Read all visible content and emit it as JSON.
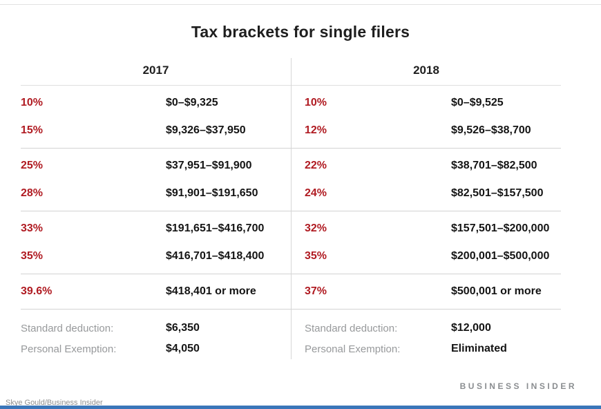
{
  "page": {
    "title": "Tax brackets for single filers",
    "brand": "BUSINESS INSIDER",
    "credit": "Skye Gould/Business Insider"
  },
  "colors": {
    "rate_red": "#b01b22",
    "label_gray": "#97999b",
    "divider_gray": "#d2d2d2",
    "bottom_bar_blue": "#3a76b9"
  },
  "table": {
    "columns": [
      {
        "year": "2017",
        "rows": [
          {
            "rate": "10%",
            "range": "$0–$9,325"
          },
          {
            "rate": "15%",
            "range": "$9,326–$37,950"
          },
          {
            "rate": "25%",
            "range": "$37,951–$91,900"
          },
          {
            "rate": "28%",
            "range": "$91,901–$191,650"
          },
          {
            "rate": "33%",
            "range": "$191,651–$416,700"
          },
          {
            "rate": "35%",
            "range": "$416,701–$418,400"
          },
          {
            "rate": "39.6%",
            "range": "$418,401 or more"
          }
        ],
        "footer": [
          {
            "label": "Standard deduction:",
            "value": "$6,350"
          },
          {
            "label": "Personal Exemption:",
            "value": "$4,050"
          }
        ]
      },
      {
        "year": "2018",
        "rows": [
          {
            "rate": "10%",
            "range": "$0–$9,525"
          },
          {
            "rate": "12%",
            "range": "$9,526–$38,700"
          },
          {
            "rate": "22%",
            "range": "$38,701–$82,500"
          },
          {
            "rate": "24%",
            "range": "$82,501–$157,500"
          },
          {
            "rate": "32%",
            "range": "$157,501–$200,000"
          },
          {
            "rate": "35%",
            "range": "$200,001–$500,000"
          },
          {
            "rate": "37%",
            "range": "$500,001 or more"
          }
        ],
        "footer": [
          {
            "label": "Standard deduction:",
            "value": "$12,000"
          },
          {
            "label": "Personal Exemption:",
            "value": "Eliminated"
          }
        ]
      }
    ]
  },
  "chart_data": {
    "type": "table",
    "title": "Tax brackets for single filers",
    "columns": [
      "2017 rate",
      "2017 income range",
      "2018 rate",
      "2018 income range"
    ],
    "rows": [
      [
        "10%",
        "$0–$9,325",
        "10%",
        "$0–$9,525"
      ],
      [
        "15%",
        "$9,326–$37,950",
        "12%",
        "$9,526–$38,700"
      ],
      [
        "25%",
        "$37,951–$91,900",
        "22%",
        "$38,701–$82,500"
      ],
      [
        "28%",
        "$91,901–$191,650",
        "24%",
        "$82,501–$157,500"
      ],
      [
        "33%",
        "$191,651–$416,700",
        "32%",
        "$157,501–$200,000"
      ],
      [
        "35%",
        "$416,701–$418,400",
        "35%",
        "$200,001–$500,000"
      ],
      [
        "39.6%",
        "$418,401 or more",
        "37%",
        "$500,001 or more"
      ]
    ],
    "footer_rows": [
      [
        "Standard deduction:",
        "$6,350",
        "Standard deduction:",
        "$12,000"
      ],
      [
        "Personal Exemption:",
        "$4,050",
        "Personal Exemption:",
        "Eliminated"
      ]
    ],
    "layout": {
      "grid": "horizontal group separators",
      "grouping": [
        2,
        2,
        2,
        1
      ],
      "source_brand": "BUSINESS INSIDER"
    }
  }
}
